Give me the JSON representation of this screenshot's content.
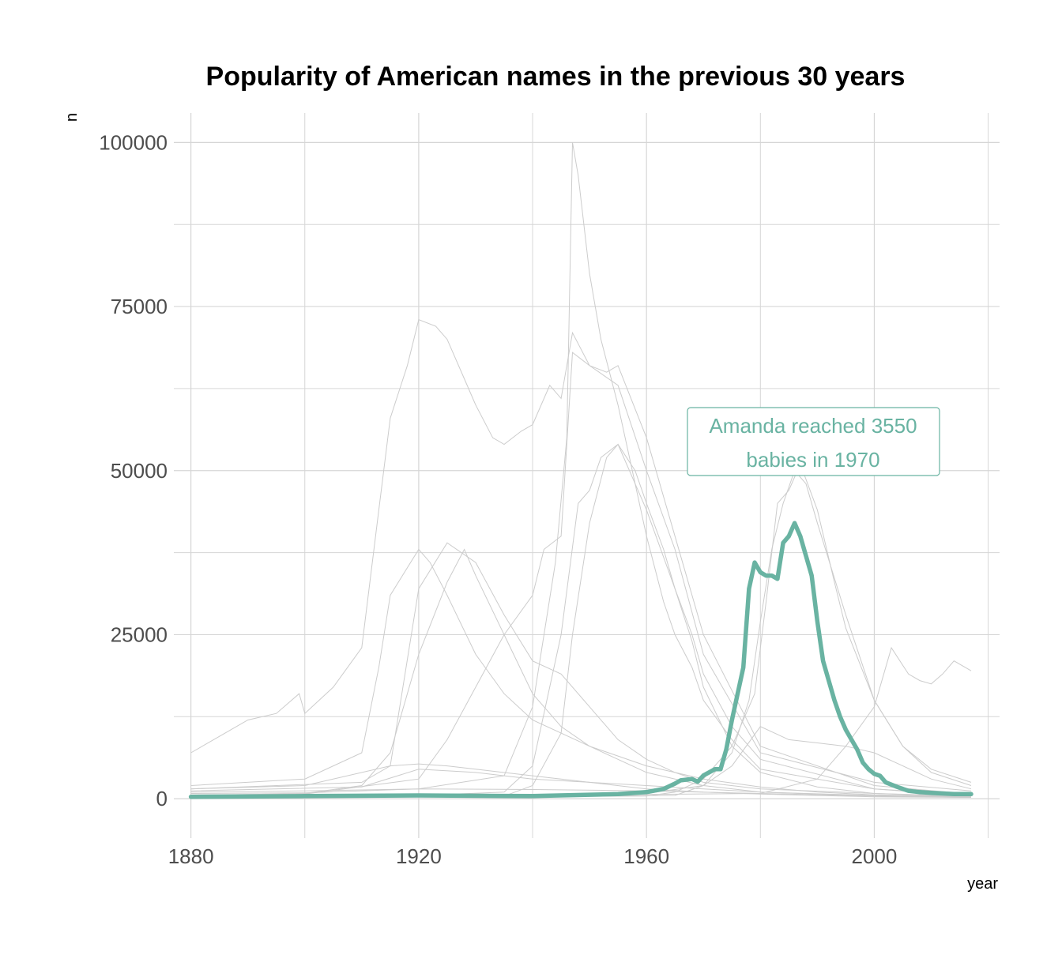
{
  "chart_data": {
    "type": "line",
    "title": "Popularity of American names in the previous 30 years",
    "xlabel": "year",
    "ylabel": "n",
    "xlim": [
      1877,
      2022
    ],
    "ylim": [
      -6000,
      104500
    ],
    "x_ticks": [
      1880,
      1920,
      1960,
      2000
    ],
    "y_ticks": [
      0,
      25000,
      50000,
      75000,
      100000
    ],
    "grid": true,
    "highlight_color": "#69b3a2",
    "background_color": "#cccccc",
    "annotation": {
      "text_line1": "Amanda reached 3550",
      "text_line2": "babies in 1970"
    },
    "highlight_series": {
      "name": "Amanda",
      "x": [
        1880,
        1900,
        1920,
        1940,
        1955,
        1960,
        1963,
        1965,
        1966,
        1968,
        1969,
        1970,
        1972,
        1973,
        1974,
        1975,
        1976,
        1977,
        1978,
        1979,
        1980,
        1981,
        1982,
        1983,
        1984,
        1985,
        1986,
        1987,
        1988,
        1989,
        1990,
        1991,
        1992,
        1993,
        1994,
        1995,
        1996,
        1997,
        1998,
        1999,
        2000,
        2001,
        2002,
        2004,
        2006,
        2008,
        2010,
        2012,
        2014,
        2017
      ],
      "y": [
        300,
        400,
        500,
        400,
        700,
        1000,
        1500,
        2300,
        2800,
        3000,
        2600,
        3550,
        4500,
        4500,
        7500,
        12000,
        16000,
        20000,
        32000,
        36000,
        34500,
        34000,
        34000,
        33500,
        39000,
        40000,
        42000,
        40000,
        37000,
        34000,
        27000,
        21000,
        18000,
        15000,
        12500,
        10500,
        9000,
        7500,
        5500,
        4500,
        3800,
        3500,
        2500,
        1800,
        1200,
        1000,
        900,
        800,
        700,
        700
      ]
    },
    "series": [
      {
        "x": [
          1880,
          1885,
          1890,
          1895,
          1899,
          1900,
          1905,
          1910,
          1913,
          1915,
          1918,
          1920,
          1923,
          1925,
          1928,
          1930,
          1933,
          1935,
          1938,
          1940,
          1943,
          1945,
          1947,
          1950,
          1955,
          1960,
          1965,
          1970,
          1980,
          2000,
          2017
        ],
        "y": [
          7000,
          9500,
          12000,
          13000,
          16000,
          13000,
          17000,
          23000,
          44000,
          58000,
          66000,
          73000,
          72000,
          70000,
          64000,
          60000,
          55000,
          54000,
          56000,
          57000,
          63000,
          61000,
          71000,
          66000,
          63000,
          50000,
          38000,
          22000,
          7000,
          2500,
          1200
        ]
      },
      {
        "x": [
          1880,
          1900,
          1920,
          1935,
          1940,
          1944,
          1946,
          1947,
          1948,
          1950,
          1952,
          1955,
          1957,
          1960,
          1963,
          1965,
          1968,
          1970,
          1975,
          1980,
          2000,
          2017
        ],
        "y": [
          1000,
          1200,
          1500,
          3500,
          14000,
          36000,
          55000,
          100000,
          95000,
          80000,
          70000,
          60000,
          52000,
          40000,
          30000,
          25000,
          20000,
          15000,
          9000,
          4500,
          1500,
          600
        ]
      },
      {
        "x": [
          1880,
          1900,
          1910,
          1913,
          1915,
          1920,
          1922,
          1925,
          1930,
          1935,
          1940,
          1945,
          1950,
          1960,
          1970,
          1980,
          1990,
          2000,
          2017
        ],
        "y": [
          2000,
          3000,
          7000,
          20000,
          31000,
          38000,
          36000,
          31000,
          22000,
          16000,
          12000,
          10000,
          8000,
          5000,
          3000,
          1800,
          1000,
          600,
          300
        ]
      },
      {
        "x": [
          1880,
          1900,
          1915,
          1920,
          1925,
          1930,
          1935,
          1940,
          1945,
          1950,
          1955,
          1960,
          1965,
          1970,
          1980,
          2000,
          2017
        ],
        "y": [
          1500,
          2000,
          5000,
          32000,
          39000,
          36000,
          28000,
          21000,
          19000,
          14000,
          9000,
          6000,
          4000,
          2500,
          1500,
          800,
          400
        ]
      },
      {
        "x": [
          1880,
          1900,
          1910,
          1915,
          1920,
          1925,
          1928,
          1930,
          1935,
          1940,
          1945,
          1950,
          1955,
          1960,
          1970,
          1980,
          2000,
          2017
        ],
        "y": [
          500,
          800,
          2000,
          7000,
          22000,
          33000,
          38000,
          34000,
          25000,
          16000,
          11000,
          8000,
          6000,
          4000,
          2000,
          1000,
          400,
          200
        ]
      },
      {
        "x": [
          1880,
          1900,
          1920,
          1925,
          1930,
          1935,
          1940,
          1942,
          1945,
          1947,
          1950,
          1953,
          1955,
          1960,
          1965,
          1970,
          1980,
          2000,
          2017
        ],
        "y": [
          600,
          700,
          3000,
          9000,
          17000,
          25000,
          31000,
          38000,
          40000,
          68000,
          66000,
          65000,
          66000,
          55000,
          40000,
          25000,
          8000,
          2000,
          700
        ]
      },
      {
        "x": [
          1880,
          1920,
          1935,
          1940,
          1945,
          1948,
          1950,
          1952,
          1955,
          1958,
          1960,
          1965,
          1968,
          1970,
          1975,
          1980,
          2000,
          2017
        ],
        "y": [
          300,
          500,
          1000,
          5000,
          25000,
          45000,
          47000,
          52000,
          54000,
          48000,
          44000,
          32000,
          25000,
          19000,
          11000,
          6000,
          1500,
          400
        ]
      },
      {
        "x": [
          1880,
          1935,
          1940,
          1945,
          1947,
          1950,
          1953,
          1955,
          1958,
          1960,
          1963,
          1965,
          1968,
          1970,
          1975,
          1980,
          1990,
          2000,
          2017
        ],
        "y": [
          200,
          400,
          2000,
          10000,
          25000,
          42000,
          52000,
          54000,
          50000,
          45000,
          38000,
          32000,
          24000,
          17000,
          8000,
          4000,
          1800,
          800,
          300
        ]
      },
      {
        "x": [
          1880,
          1960,
          1965,
          1970,
          1975,
          1979,
          1981,
          1983,
          1985,
          1987,
          1990,
          1993,
          1995,
          2000,
          2005,
          2010,
          2017
        ],
        "y": [
          200,
          400,
          1000,
          3000,
          8000,
          16000,
          30000,
          45000,
          47000,
          51000,
          44000,
          33000,
          26000,
          15000,
          8000,
          4500,
          2500
        ]
      },
      {
        "x": [
          1880,
          1965,
          1970,
          1975,
          1978,
          1980,
          1982,
          1984,
          1986,
          1988,
          1990,
          1995,
          2000,
          2005,
          2010,
          2017
        ],
        "y": [
          100,
          500,
          2000,
          7000,
          15000,
          27000,
          38000,
          45000,
          50000,
          48000,
          42000,
          28000,
          15000,
          8000,
          4000,
          2000
        ]
      },
      {
        "x": [
          1880,
          1960,
          1970,
          1975,
          1980,
          1985,
          1990,
          1995,
          2000,
          2005,
          2010,
          2017
        ],
        "y": [
          300,
          800,
          2000,
          5000,
          11000,
          9000,
          8500,
          8000,
          7000,
          5000,
          3000,
          1500
        ]
      },
      {
        "x": [
          1880,
          1980,
          1990,
          1995,
          2000,
          2003,
          2006,
          2008,
          2010,
          2012,
          2014,
          2017
        ],
        "y": [
          100,
          800,
          3000,
          8000,
          14000,
          23000,
          19000,
          18000,
          17500,
          19000,
          21000,
          19500
        ]
      },
      {
        "x": [
          1880,
          1910,
          1915,
          1920,
          1925,
          1930,
          1940,
          1950,
          1960,
          1970,
          1980,
          2000,
          2017
        ],
        "y": [
          1500,
          2500,
          5000,
          5300,
          5000,
          4500,
          3500,
          2500,
          1500,
          1000,
          700,
          300,
          200
        ]
      },
      {
        "x": [
          1880,
          1910,
          1920,
          1930,
          1940,
          1950,
          1960,
          1970,
          1980,
          2000,
          2017
        ],
        "y": [
          1200,
          1800,
          4500,
          4000,
          3000,
          2500,
          2000,
          1500,
          1000,
          500,
          300
        ]
      },
      {
        "x": [
          1880,
          1900,
          1920,
          1940,
          1960,
          1980,
          2000,
          2017
        ],
        "y": [
          800,
          900,
          1500,
          1400,
          1200,
          800,
          400,
          200
        ]
      }
    ]
  }
}
